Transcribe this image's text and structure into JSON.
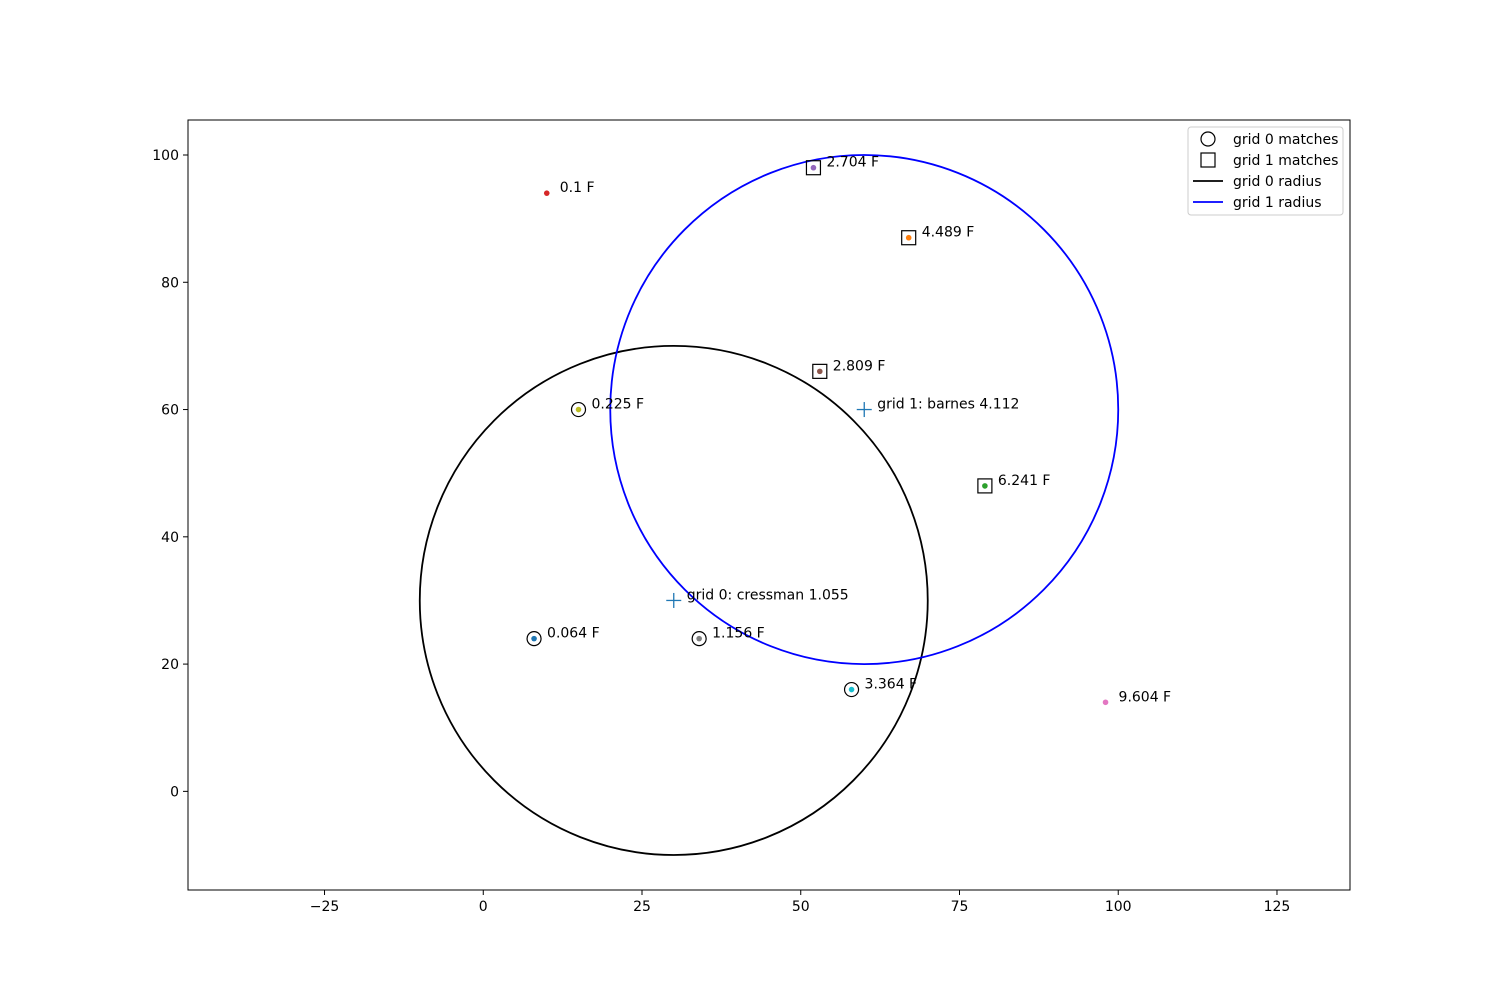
{
  "chart_data": {
    "type": "scatter",
    "title": "",
    "xlabel": "",
    "ylabel": "",
    "xlim": [
      -46.5,
      136.5
    ],
    "ylim": [
      -15.5,
      105.5
    ],
    "xticks": [
      -25,
      0,
      25,
      50,
      75,
      100,
      125
    ],
    "yticks": [
      0,
      20,
      40,
      60,
      80,
      100
    ],
    "grid": false,
    "legend_position": "top-right",
    "points": [
      {
        "x": 8,
        "y": 24,
        "label": "0.064 F",
        "color": "#1f77b4",
        "match": "grid0"
      },
      {
        "x": 67,
        "y": 87,
        "label": "4.489 F",
        "color": "#ff7f0e",
        "match": "grid1"
      },
      {
        "x": 79,
        "y": 48,
        "label": "6.241 F",
        "color": "#2ca02c",
        "match": "grid1"
      },
      {
        "x": 10,
        "y": 94,
        "label": "0.1 F",
        "color": "#d62728",
        "match": "none"
      },
      {
        "x": 52,
        "y": 98,
        "label": "2.704 F",
        "color": "#9467bd",
        "match": "grid1"
      },
      {
        "x": 53,
        "y": 66,
        "label": "2.809 F",
        "color": "#8c564b",
        "match": "grid1"
      },
      {
        "x": 98,
        "y": 14,
        "label": "9.604 F",
        "color": "#e377c2",
        "match": "none"
      },
      {
        "x": 34,
        "y": 24,
        "label": "1.156 F",
        "color": "#7f7f7f",
        "match": "grid0"
      },
      {
        "x": 15,
        "y": 60,
        "label": "0.225 F",
        "color": "#bcbd22",
        "match": "grid0"
      },
      {
        "x": 58,
        "y": 16,
        "label": "3.364 F",
        "color": "#17becf",
        "match": "grid0"
      }
    ],
    "grid_points": [
      {
        "x": 30,
        "y": 30,
        "label": "grid 0: cressman 1.055",
        "color": "#1f77b4"
      },
      {
        "x": 60,
        "y": 60,
        "label": "grid 1: barnes 4.112",
        "color": "#1f77b4"
      }
    ],
    "circles": [
      {
        "cx": 30,
        "cy": 30,
        "r": 40,
        "color": "#000000",
        "name": "grid 0 radius"
      },
      {
        "cx": 60,
        "cy": 60,
        "r": 40,
        "color": "#0000ff",
        "name": "grid 1 radius"
      }
    ],
    "legend": [
      {
        "label": "grid 0 matches",
        "marker": "circle"
      },
      {
        "label": "grid 1 matches",
        "marker": "square"
      },
      {
        "label": "grid 0 radius",
        "marker": "line",
        "color": "#000000"
      },
      {
        "label": "grid 1 radius",
        "marker": "line",
        "color": "#0000ff"
      }
    ]
  }
}
